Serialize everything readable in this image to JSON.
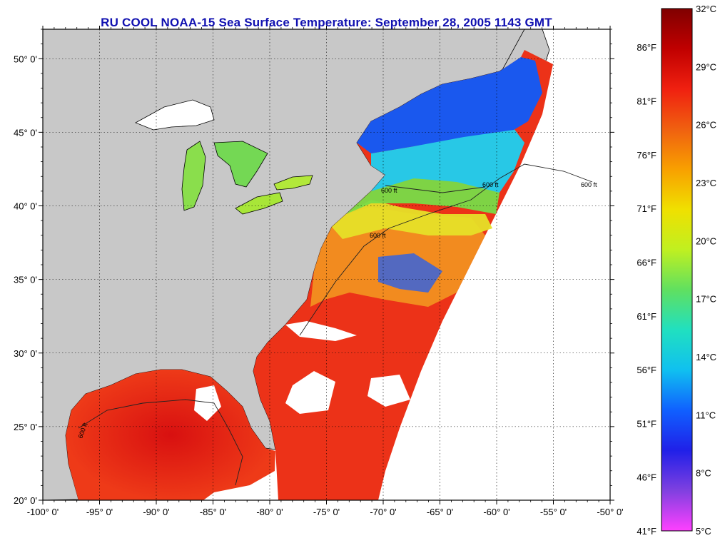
{
  "title": "RU COOL  NOAA-15  Sea Surface Temperature:  September 28, 2005 1143 GMT",
  "map": {
    "lon_range": [
      -100,
      -50
    ],
    "lat_range": [
      20,
      52
    ],
    "lon_ticks": [
      {
        "value": -100,
        "label": "-100° 0'"
      },
      {
        "value": -95,
        "label": "-95° 0'"
      },
      {
        "value": -90,
        "label": "-90° 0'"
      },
      {
        "value": -85,
        "label": "-85° 0'"
      },
      {
        "value": -80,
        "label": "-80° 0'"
      },
      {
        "value": -75,
        "label": "-75° 0'"
      },
      {
        "value": -70,
        "label": "-70° 0'"
      },
      {
        "value": -65,
        "label": "-65° 0'"
      },
      {
        "value": -60,
        "label": "-60° 0'"
      },
      {
        "value": -55,
        "label": "-55° 0'"
      },
      {
        "value": -50,
        "label": "-50° 0'"
      }
    ],
    "lat_ticks": [
      {
        "value": 20,
        "label": "20° 0'"
      },
      {
        "value": 25,
        "label": "25° 0'"
      },
      {
        "value": 30,
        "label": "30° 0'"
      },
      {
        "value": 35,
        "label": "35° 0'"
      },
      {
        "value": 40,
        "label": "40° 0'"
      },
      {
        "value": 45,
        "label": "45° 0'"
      },
      {
        "value": 50,
        "label": "50° 0'"
      }
    ],
    "contour_label": "600 ft",
    "colors": {
      "land": "#c8c8c8",
      "no_data": "#ffffff",
      "warm": "#e8281a",
      "orange": "#f08818",
      "yellow": "#e8e020",
      "green": "#80e040",
      "cyan": "#20d0e8",
      "blue": "#1060f0"
    }
  },
  "colorbar": {
    "celsius_labels": [
      "32°C",
      "29°C",
      "26°C",
      "23°C",
      "20°C",
      "17°C",
      "14°C",
      "11°C",
      "8°C",
      "5°C"
    ],
    "fahrenheit_labels": [
      "86°F",
      "81°F",
      "76°F",
      "71°F",
      "66°F",
      "61°F",
      "56°F",
      "51°F",
      "46°F",
      "41°F"
    ],
    "range_c": [
      5,
      32
    ],
    "stops": [
      "#ff40ff",
      "#8040e0",
      "#2020e8",
      "#1060ff",
      "#10c0f0",
      "#20e0c0",
      "#60e060",
      "#c0f020",
      "#f0e000",
      "#f8a000",
      "#f06010",
      "#f02010",
      "#c00000",
      "#800000"
    ]
  }
}
